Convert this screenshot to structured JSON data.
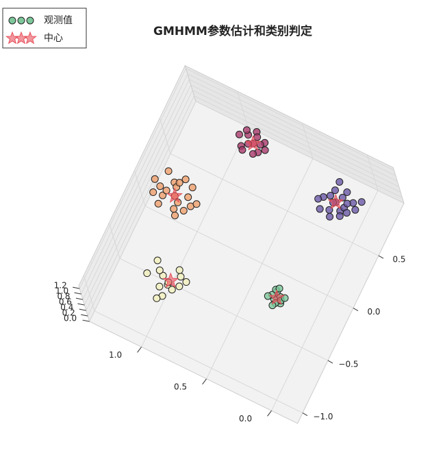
{
  "chart_data": {
    "type": "scatter3d",
    "title": "GMHMM参数估计和类别判定",
    "legend": [
      "观测值",
      "中心"
    ],
    "xlim": [
      -0.2,
      1.4
    ],
    "ylim": [
      -1.1,
      1.0
    ],
    "zlim": [
      0,
      1.3
    ],
    "xticks": [
      {
        "value": 0,
        "label": "0.0"
      },
      {
        "value": 0.5,
        "label": "0.5"
      },
      {
        "value": 1,
        "label": "1.0"
      }
    ],
    "yticks": [
      {
        "value": -1,
        "label": "−1.0"
      },
      {
        "value": -0.5,
        "label": "−0.5"
      },
      {
        "value": 0,
        "label": "0.0"
      },
      {
        "value": 0.5,
        "label": "0.5"
      }
    ],
    "zticks": [
      {
        "value": 0,
        "label": "0.0"
      },
      {
        "value": 0.2,
        "label": "0.2"
      },
      {
        "value": 0.4,
        "label": "0.4"
      },
      {
        "value": 0.6,
        "label": "0.6"
      },
      {
        "value": 0.8,
        "label": "0.8"
      },
      {
        "value": 1,
        "label": "1.0"
      },
      {
        "value": 1.2,
        "label": "1.2"
      }
    ],
    "grid": true,
    "clusters": [
      {
        "color": "#7dc79a",
        "x": [
          0.22,
          0.26,
          0.25,
          0.2,
          0.28,
          0.23,
          0.27,
          0.21,
          0.24,
          0.3,
          0.19,
          0.25
        ],
        "y": [
          -0.28,
          -0.31,
          -0.26,
          -0.33,
          -0.29,
          -0.35,
          -0.24,
          -0.3,
          -0.38,
          -0.32,
          -0.27,
          -0.22
        ],
        "z": [
          0.5,
          0.45,
          0.55,
          0.5,
          0.48,
          0.52,
          0.5,
          0.47,
          0.53,
          0.5,
          0.49,
          0.51
        ]
      },
      {
        "color": "#f1efbb",
        "x": [
          0.9,
          1.02,
          0.95,
          0.88,
          1.08,
          0.97,
          0.85,
          1.0,
          0.93,
          1.12,
          0.99,
          0.91,
          1.05,
          0.96
        ],
        "y": [
          -0.5,
          -0.55,
          -0.62,
          -0.58,
          -0.48,
          -0.7,
          -0.52,
          -0.66,
          -0.45,
          -0.6,
          -0.75,
          -0.64,
          -0.53,
          -0.59
        ],
        "z": [
          0.5,
          0.45,
          0.55,
          0.5,
          0.6,
          0.4,
          0.5,
          0.52,
          0.48,
          0.5,
          0.46,
          0.54,
          0.5,
          0.5
        ]
      },
      {
        "color": "#ef9f6c",
        "x": [
          1.18,
          1.25,
          1.1,
          1.3,
          1.15,
          1.22,
          1.05,
          1.28,
          1.12,
          1.2,
          1.35,
          1.08,
          1.17,
          1.24,
          1.02,
          1.14,
          1.26,
          1.19,
          1.32,
          1.1
        ],
        "y": [
          0.1,
          0.05,
          0.15,
          0.12,
          0.0,
          0.2,
          0.08,
          0.25,
          -0.05,
          0.18,
          0.15,
          0.02,
          0.28,
          0.1,
          0.12,
          0.06,
          -0.02,
          0.22,
          0.04,
          0.24
        ],
        "z": [
          0.5,
          0.55,
          0.45,
          0.5,
          0.48,
          0.52,
          0.5,
          0.6,
          0.5,
          0.47,
          0.53,
          0.5,
          0.44,
          0.56,
          0.5,
          0.51,
          0.49,
          0.5,
          0.54,
          0.46
        ]
      },
      {
        "color": "#6a57a6",
        "x": [
          0.16,
          0.1,
          0.22,
          0.05,
          0.18,
          0.25,
          0.12,
          0.08,
          0.2,
          0.02,
          0.15,
          0.28,
          0.1,
          0.19,
          0.06,
          0.13,
          0.24,
          0.0,
          0.17,
          0.09
        ],
        "y": [
          0.66,
          0.6,
          0.7,
          0.72,
          0.58,
          0.65,
          0.78,
          0.55,
          0.75,
          0.68,
          0.52,
          0.62,
          0.66,
          0.82,
          0.62,
          0.72,
          0.55,
          0.76,
          0.64,
          0.7
        ],
        "z": [
          0.5,
          0.55,
          0.45,
          0.5,
          0.48,
          0.52,
          0.5,
          0.6,
          0.5,
          0.47,
          0.53,
          0.5,
          0.44,
          0.56,
          0.5,
          0.51,
          0.49,
          0.5,
          0.54,
          0.46
        ]
      },
      {
        "color": "#a93a6c",
        "x": [
          0.85,
          0.8,
          0.9,
          0.78,
          0.92,
          0.86,
          0.82,
          0.95,
          0.88,
          0.76,
          0.84,
          0.93,
          0.81,
          0.89
        ],
        "y": [
          0.8,
          0.76,
          0.84,
          0.85,
          0.74,
          0.9,
          0.72,
          0.8,
          0.78,
          0.8,
          0.86,
          0.88,
          0.83,
          0.7
        ],
        "z": [
          0.5,
          0.45,
          0.55,
          0.5,
          0.48,
          0.52,
          0.5,
          0.6,
          0.5,
          0.47,
          0.53,
          0.5,
          0.44,
          0.56
        ]
      }
    ],
    "centers": {
      "color": "#e8505b",
      "x": [
        0.24,
        0.95,
        1.18,
        0.16,
        0.85
      ],
      "y": [
        -0.3,
        -0.57,
        0.1,
        0.66,
        0.8
      ],
      "z": [
        0.5,
        0.5,
        0.5,
        0.5,
        0.5
      ]
    }
  }
}
